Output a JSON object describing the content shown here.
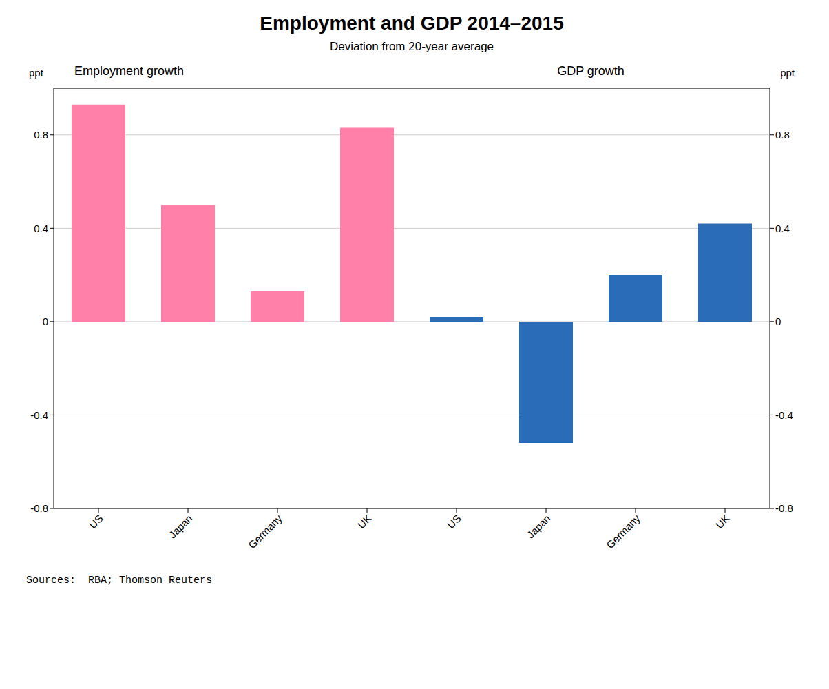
{
  "title": "Employment and GDP 2014–2015",
  "subtitle": "Deviation from 20-year average",
  "annotations": [
    "Sources:  RBA; Thomson Reuters"
  ],
  "chart_data": [
    {
      "type": "bar",
      "title": "Employment growth",
      "categories": [
        "US",
        "Japan",
        "Germany",
        "UK"
      ],
      "values": [
        0.93,
        0.5,
        0.13,
        0.83
      ],
      "color": "#FF80A8",
      "ylim": [
        -0.8,
        1.0
      ],
      "yticks": [
        -0.8,
        -0.4,
        0,
        0.4,
        0.8
      ],
      "ylabel": "ppt",
      "grid": true
    },
    {
      "type": "bar",
      "title": "GDP growth",
      "categories": [
        "US",
        "Japan",
        "Germany",
        "UK"
      ],
      "values": [
        0.02,
        -0.52,
        0.2,
        0.42
      ],
      "color": "#2B6CB8",
      "ylim": [
        -0.8,
        1.0
      ],
      "yticks": [
        -0.8,
        -0.4,
        0,
        0.4,
        0.8
      ],
      "ylabel": "ppt",
      "grid": true
    }
  ]
}
